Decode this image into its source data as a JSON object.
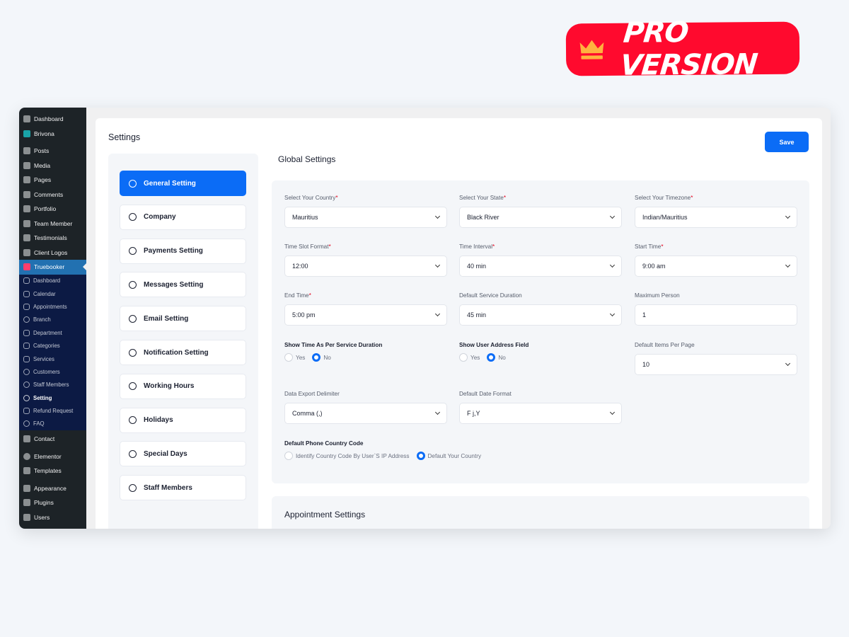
{
  "badge": {
    "text": "PRO VERSION",
    "icon": "crown-icon",
    "color": "#ff0a2e"
  },
  "wp_menu": {
    "top": [
      "Dashboard",
      "Brivona",
      "Posts",
      "Media",
      "Pages",
      "Comments",
      "Portfolio",
      "Team Member",
      "Testimonials",
      "Client Logos",
      "Truebooker"
    ],
    "sub": [
      "Dashboard",
      "Calendar",
      "Appointments",
      "Branch",
      "Department",
      "Categories",
      "Services",
      "Customers",
      "Staff Members",
      "Setting",
      "Refund Request",
      "FAQ"
    ],
    "bottom": [
      "Contact",
      "Elementor",
      "Templates",
      "Appearance",
      "Plugins",
      "Users"
    ]
  },
  "page": {
    "title": "Settings",
    "save": "Save",
    "section": "Global Settings",
    "appointment": "Appointment Settings"
  },
  "nav": [
    "General Setting",
    "Company",
    "Payments Setting",
    "Messages Setting",
    "Email Setting",
    "Notification Setting",
    "Working Hours",
    "Holidays",
    "Special Days",
    "Staff Members"
  ],
  "fields": {
    "country": {
      "label": "Select Your Country",
      "value": "Mauritius"
    },
    "state": {
      "label": "Select Your State",
      "value": "Black River"
    },
    "timezone": {
      "label": "Select Your Timezone",
      "value": "Indian/Mauritius"
    },
    "slot": {
      "label": "Time Slot Format",
      "value": "12:00"
    },
    "interval": {
      "label": "Time Interval",
      "value": "40 min"
    },
    "start": {
      "label": "Start Time",
      "value": "9:00 am"
    },
    "end": {
      "label": "End Time",
      "value": "5:00 pm"
    },
    "duration": {
      "label": "Default Service Duration",
      "value": "45 min"
    },
    "maxp": {
      "label": "Maximum Person",
      "value": "1"
    },
    "showtime": {
      "label": "Show Time As Per Service Duration",
      "yes": "Yes",
      "no": "No",
      "selected": "No"
    },
    "address": {
      "label": "Show User Address Field",
      "yes": "Yes",
      "no": "No",
      "selected": "No"
    },
    "perpage": {
      "label": "Default Items Per Page",
      "value": "10"
    },
    "delim": {
      "label": "Data Export Delimiter",
      "value": "Comma (,)"
    },
    "datefmt": {
      "label": "Default Date Format",
      "value": "F j,Y"
    },
    "phone": {
      "label": "Default Phone Country Code",
      "opt1": "Identify Country Code By User`S IP Address",
      "opt2": "Default Your Country",
      "selected": "Default Your Country"
    },
    "required": "*"
  },
  "colors": {
    "accent": "#0b6cf6",
    "wp_sidebar": "#1d2327",
    "submenu": "#0c1a44"
  }
}
